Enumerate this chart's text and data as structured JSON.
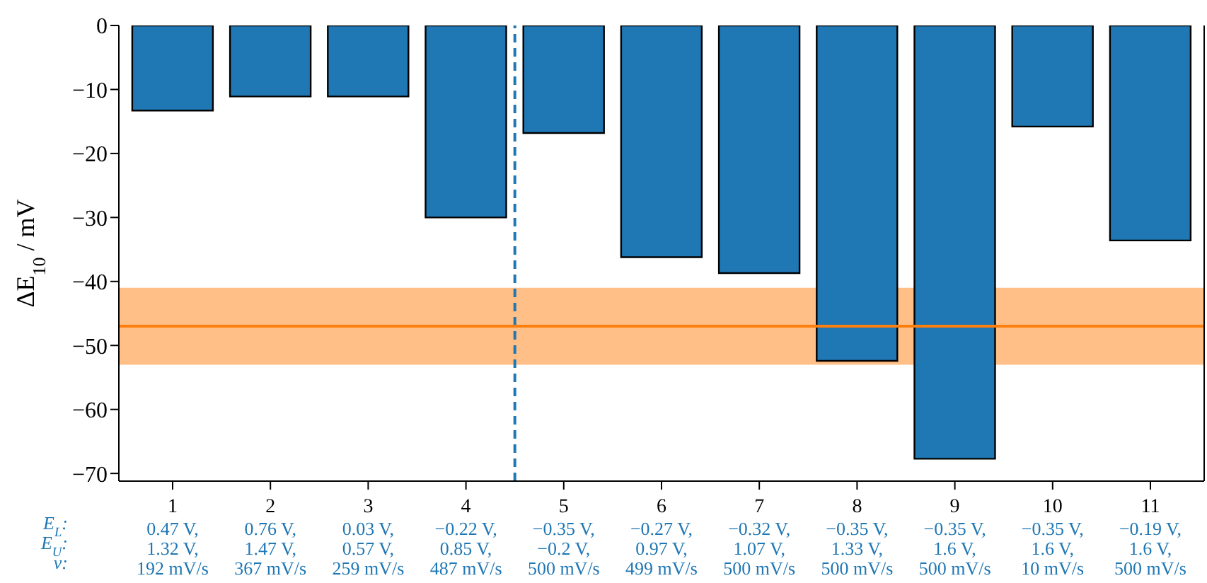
{
  "chart_data": {
    "type": "bar",
    "ylabel": "ΔE$_{10}$ / mV",
    "x": [
      1,
      2,
      3,
      4,
      5,
      6,
      7,
      8,
      9,
      10,
      11
    ],
    "values": [
      -13.3,
      -11.1,
      -11.1,
      -30.0,
      -16.8,
      -36.2,
      -38.7,
      -52.4,
      -67.7,
      -15.8,
      -33.6
    ],
    "color": "#1f77b4",
    "xlim": [
      0.45,
      11.55
    ],
    "xticks": [
      1,
      2,
      3,
      4,
      5,
      6,
      7,
      8,
      9,
      10,
      11
    ],
    "ylim": [
      -71.2,
      0
    ],
    "yticks": [
      -70,
      -60,
      -50,
      -40,
      -30,
      -20,
      -10,
      0
    ],
    "ref_lines": [
      {
        "axis": "x",
        "value": 4.5,
        "color": "#1f77b4",
        "line_style": "dashed"
      },
      {
        "axis": "y",
        "value": -47,
        "color": "#ff7f0e",
        "line_style": "solid"
      }
    ],
    "bands": [
      {
        "axis": "y",
        "from": -53,
        "to": -41,
        "color": "#ff7f0e"
      }
    ],
    "annotations": [
      "E$_{L}$:",
      "E$_{U}$:",
      "ν:",
      "0.47 V, 1.32 V, 192 mV/s",
      "0.76 V, 1.47 V, 367 mV/s",
      "0.03 V, 0.57 V, 259 mV/s",
      "−0.22 V, 0.85 V, 487 mV/s",
      "−0.35 V, −0.2 V, 500 mV/s",
      "−0.27 V, 0.97 V, 499 mV/s",
      "−0.32 V, 1.07 V, 500 mV/s",
      "−0.35 V, 1.33 V, 500 mV/s",
      "−0.35 V, 1.6 V, 500 mV/s",
      "−0.35 V, 1.6 V, 10 mV/s",
      "−0.19 V, 1.6 V, 500 mV/s"
    ]
  }
}
